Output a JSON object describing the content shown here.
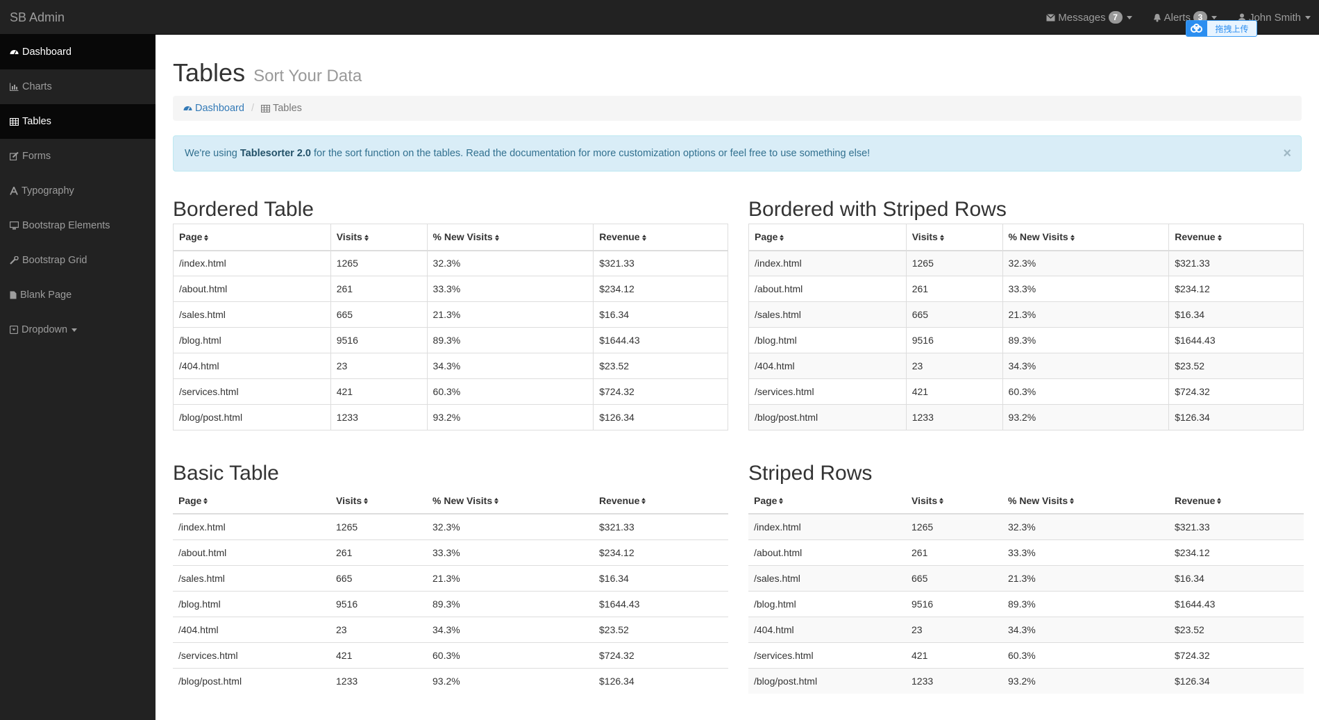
{
  "app": {
    "brand": "SB Admin"
  },
  "topnav": {
    "messages_label": "Messages",
    "messages_count": "7",
    "alerts_label": "Alerts",
    "alerts_count": "3",
    "user_label": "John Smith",
    "upload_widget_text": "拖拽上传"
  },
  "sidebar": {
    "items": [
      {
        "label": "Dashboard",
        "icon": "dashboard-icon"
      },
      {
        "label": "Charts",
        "icon": "bar-chart-icon"
      },
      {
        "label": "Tables",
        "icon": "table-icon"
      },
      {
        "label": "Forms",
        "icon": "edit-icon"
      },
      {
        "label": "Typography",
        "icon": "font-icon"
      },
      {
        "label": "Bootstrap Elements",
        "icon": "desktop-icon"
      },
      {
        "label": "Bootstrap Grid",
        "icon": "wrench-icon"
      },
      {
        "label": "Blank Page",
        "icon": "file-icon"
      },
      {
        "label": "Dropdown",
        "icon": "caret-square-icon"
      }
    ]
  },
  "page": {
    "title": "Tables",
    "subtitle": "Sort Your Data",
    "breadcrumb": {
      "link": "Dashboard",
      "active": "Tables"
    }
  },
  "alert": {
    "prefix": "We're using ",
    "strong": "Tablesorter 2.0",
    "suffix": " for the sort function on the tables. Read the documentation for more customization options or feel free to use something else!",
    "close": "×"
  },
  "tables": {
    "headers": [
      "Page",
      "Visits",
      "% New Visits",
      "Revenue"
    ],
    "rows": [
      [
        "/index.html",
        "1265",
        "32.3%",
        "$321.33"
      ],
      [
        "/about.html",
        "261",
        "33.3%",
        "$234.12"
      ],
      [
        "/sales.html",
        "665",
        "21.3%",
        "$16.34"
      ],
      [
        "/blog.html",
        "9516",
        "89.3%",
        "$1644.43"
      ],
      [
        "/404.html",
        "23",
        "34.3%",
        "$23.52"
      ],
      [
        "/services.html",
        "421",
        "60.3%",
        "$724.32"
      ],
      [
        "/blog/post.html",
        "1233",
        "93.2%",
        "$126.34"
      ]
    ],
    "titles": {
      "bordered": "Bordered Table",
      "bordered_striped": "Bordered with Striped Rows",
      "basic": "Basic Table",
      "striped": "Striped Rows"
    }
  }
}
